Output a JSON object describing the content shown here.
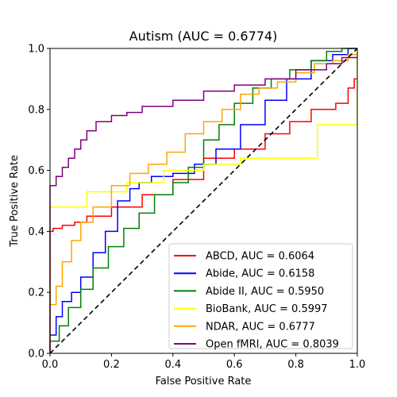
{
  "chart_data": {
    "type": "line",
    "title": "Autism (AUC = 0.6774)",
    "xlabel": "False Positive Rate",
    "ylabel": "True Positive Rate",
    "xlim": [
      0.0,
      1.0
    ],
    "ylim": [
      0.0,
      1.0
    ],
    "xticks": [
      "0.0",
      "0.2",
      "0.4",
      "0.6",
      "0.8",
      "1.0"
    ],
    "yticks": [
      "0.0",
      "0.2",
      "0.4",
      "0.6",
      "0.8",
      "1.0"
    ],
    "grid": false,
    "legend_position": "lower-right",
    "series": [
      {
        "name": "ABCD, AUC = 0.6064",
        "color": "#ff0000",
        "points": [
          [
            0.0,
            0.0
          ],
          [
            0.0,
            0.31
          ],
          [
            0.01,
            0.4
          ],
          [
            0.04,
            0.41
          ],
          [
            0.08,
            0.42
          ],
          [
            0.12,
            0.43
          ],
          [
            0.2,
            0.45
          ],
          [
            0.3,
            0.48
          ],
          [
            0.4,
            0.52
          ],
          [
            0.5,
            0.57
          ],
          [
            0.6,
            0.64
          ],
          [
            0.7,
            0.67
          ],
          [
            0.78,
            0.72
          ],
          [
            0.85,
            0.76
          ],
          [
            0.93,
            0.8
          ],
          [
            0.97,
            0.82
          ],
          [
            0.99,
            0.87
          ],
          [
            1.0,
            0.9
          ]
        ]
      },
      {
        "name": "Abide, AUC = 0.6158",
        "color": "#0000ff",
        "points": [
          [
            0.0,
            0.0
          ],
          [
            0.02,
            0.06
          ],
          [
            0.04,
            0.12
          ],
          [
            0.07,
            0.17
          ],
          [
            0.1,
            0.2
          ],
          [
            0.14,
            0.25
          ],
          [
            0.18,
            0.33
          ],
          [
            0.22,
            0.4
          ],
          [
            0.26,
            0.5
          ],
          [
            0.29,
            0.54
          ],
          [
            0.33,
            0.56
          ],
          [
            0.4,
            0.58
          ],
          [
            0.47,
            0.59
          ],
          [
            0.54,
            0.62
          ],
          [
            0.62,
            0.67
          ],
          [
            0.7,
            0.75
          ],
          [
            0.77,
            0.83
          ],
          [
            0.85,
            0.9
          ],
          [
            0.92,
            0.96
          ],
          [
            0.97,
            0.98
          ],
          [
            1.0,
            1.0
          ]
        ]
      },
      {
        "name": "Abide II, AUC = 0.5950",
        "color": "#008000",
        "points": [
          [
            0.0,
            0.0
          ],
          [
            0.03,
            0.04
          ],
          [
            0.06,
            0.09
          ],
          [
            0.1,
            0.15
          ],
          [
            0.14,
            0.21
          ],
          [
            0.19,
            0.28
          ],
          [
            0.24,
            0.35
          ],
          [
            0.29,
            0.41
          ],
          [
            0.34,
            0.46
          ],
          [
            0.4,
            0.52
          ],
          [
            0.45,
            0.56
          ],
          [
            0.5,
            0.61
          ],
          [
            0.55,
            0.7
          ],
          [
            0.6,
            0.75
          ],
          [
            0.66,
            0.82
          ],
          [
            0.72,
            0.87
          ],
          [
            0.78,
            0.9
          ],
          [
            0.85,
            0.93
          ],
          [
            0.9,
            0.96
          ],
          [
            0.95,
            0.99
          ],
          [
            1.0,
            1.0
          ]
        ]
      },
      {
        "name": "BioBank, AUC = 0.5997",
        "color": "#ffff00",
        "points": [
          [
            0.0,
            0.0
          ],
          [
            0.0,
            0.48
          ],
          [
            0.12,
            0.48
          ],
          [
            0.12,
            0.53
          ],
          [
            0.25,
            0.53
          ],
          [
            0.25,
            0.56
          ],
          [
            0.37,
            0.56
          ],
          [
            0.37,
            0.6
          ],
          [
            0.5,
            0.6
          ],
          [
            0.5,
            0.62
          ],
          [
            0.62,
            0.62
          ],
          [
            0.62,
            0.64
          ],
          [
            0.87,
            0.64
          ],
          [
            0.87,
            0.75
          ],
          [
            1.0,
            0.75
          ],
          [
            1.0,
            1.0
          ]
        ]
      },
      {
        "name": "NDAR, AUC = 0.6777",
        "color": "#ffa500",
        "points": [
          [
            0.0,
            0.0
          ],
          [
            0.0,
            0.13
          ],
          [
            0.02,
            0.16
          ],
          [
            0.04,
            0.22
          ],
          [
            0.07,
            0.3
          ],
          [
            0.1,
            0.37
          ],
          [
            0.14,
            0.43
          ],
          [
            0.2,
            0.48
          ],
          [
            0.26,
            0.55
          ],
          [
            0.32,
            0.59
          ],
          [
            0.38,
            0.62
          ],
          [
            0.44,
            0.66
          ],
          [
            0.5,
            0.72
          ],
          [
            0.56,
            0.76
          ],
          [
            0.62,
            0.8
          ],
          [
            0.68,
            0.85
          ],
          [
            0.74,
            0.87
          ],
          [
            0.8,
            0.89
          ],
          [
            0.86,
            0.92
          ],
          [
            0.92,
            0.95
          ],
          [
            0.97,
            0.96
          ],
          [
            1.0,
            0.98
          ]
        ]
      },
      {
        "name": "Open fMRI, AUC = 0.8039",
        "color": "#800080",
        "points": [
          [
            0.0,
            0.0
          ],
          [
            0.0,
            0.53
          ],
          [
            0.02,
            0.55
          ],
          [
            0.04,
            0.58
          ],
          [
            0.06,
            0.61
          ],
          [
            0.08,
            0.64
          ],
          [
            0.1,
            0.67
          ],
          [
            0.12,
            0.7
          ],
          [
            0.15,
            0.73
          ],
          [
            0.2,
            0.76
          ],
          [
            0.25,
            0.78
          ],
          [
            0.3,
            0.79
          ],
          [
            0.4,
            0.81
          ],
          [
            0.5,
            0.83
          ],
          [
            0.6,
            0.86
          ],
          [
            0.7,
            0.88
          ],
          [
            0.8,
            0.9
          ],
          [
            0.9,
            0.93
          ],
          [
            0.95,
            0.95
          ],
          [
            1.0,
            0.97
          ]
        ]
      }
    ],
    "reference_line": {
      "points": [
        [
          0.0,
          0.0
        ],
        [
          1.0,
          1.0
        ]
      ],
      "color": "#000000",
      "style": "dashed"
    }
  }
}
